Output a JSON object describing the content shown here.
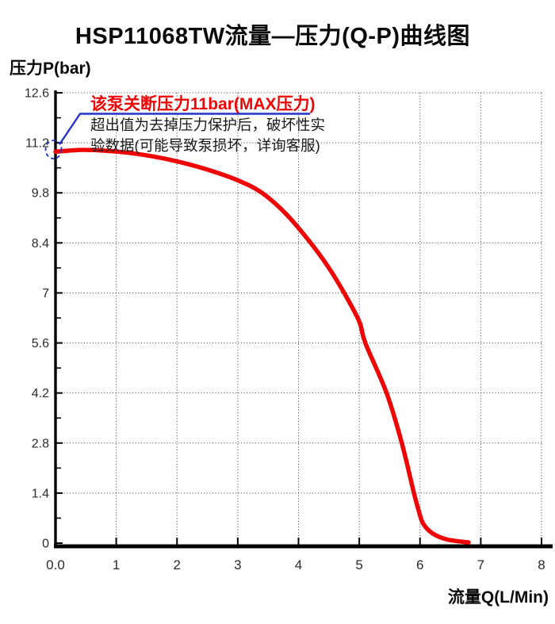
{
  "title": "HSP11068TW流量—压力(Q-P)曲线图",
  "axes": {
    "y_title": "压力P(bar)",
    "x_title": "流量Q(L/Min)"
  },
  "callout": {
    "headline": "该泵关断压力11bar(MAX压力)",
    "note_line1": "超出值为去掉压力保护后，破坏性实",
    "note_line2": "验数据(可能导致泵损坏，详询客服)",
    "marked_pressure_bar": 11
  },
  "colors": {
    "curve_red": "#ee0505",
    "callout_red": "#ee0505",
    "callout_blue": "#2433cc",
    "axis_black": "#000000",
    "grid_gray": "#3c3c3c",
    "tick_text": "#2b2b2b",
    "background": "#ffffff"
  },
  "chart_data": {
    "type": "line",
    "title": "HSP11068TW流量—压力(Q-P)曲线图",
    "xlabel": "流量Q(L/Min)",
    "ylabel": "压力P(bar)",
    "xlim": [
      0,
      8
    ],
    "ylim": [
      0,
      12.6
    ],
    "grid": "dotted, on all major ticks",
    "legend_position": "none",
    "x_tick_labels": [
      "0.0",
      "1",
      "2",
      "3",
      "4",
      "5",
      "6",
      "7",
      "8"
    ],
    "x_tick_values": [
      0,
      1,
      2,
      3,
      4,
      5,
      6,
      7,
      8
    ],
    "y_tick_labels": [
      "12.6",
      "11.2",
      "9.8",
      "8.4",
      "7",
      "5.6",
      "4.2",
      "2.8",
      "1.4",
      "0"
    ],
    "y_tick_values": [
      12.6,
      11.2,
      9.8,
      8.4,
      7,
      5.6,
      4.2,
      2.8,
      1.4,
      0
    ],
    "y_minor_ticks": [
      11.9,
      10.5,
      9.1,
      7.7,
      6.3,
      4.9,
      3.5,
      2.1,
      0.7
    ],
    "series": [
      {
        "name": "Q-P curve",
        "color": "#ee0505",
        "x": [
          0,
          0.4,
          0.8,
          1.2,
          1.6,
          2.0,
          2.5,
          3.0,
          3.4,
          3.8,
          4.2,
          4.5,
          4.75,
          5.0,
          5.1,
          5.45,
          5.7,
          5.9,
          5.98,
          6.05,
          6.2,
          6.45,
          6.8
        ],
        "y": [
          10.95,
          11.0,
          10.98,
          10.92,
          10.82,
          10.68,
          10.45,
          10.15,
          9.8,
          9.2,
          8.4,
          7.7,
          7.0,
          6.2,
          5.6,
          4.2,
          2.8,
          1.4,
          0.9,
          0.55,
          0.28,
          0.1,
          0.02
        ]
      }
    ],
    "annotations": [
      {
        "type": "circled-point",
        "x": 0,
        "y": 11,
        "style": "dashed blue ellipse on y-axis at curve start"
      },
      {
        "type": "leader-line-callout",
        "text": "该泵关断压力11bar(MAX压力)",
        "note": "超出值为去掉压力保护后，破坏性实验数据(可能导致泵损坏，详询客服)"
      }
    ]
  }
}
